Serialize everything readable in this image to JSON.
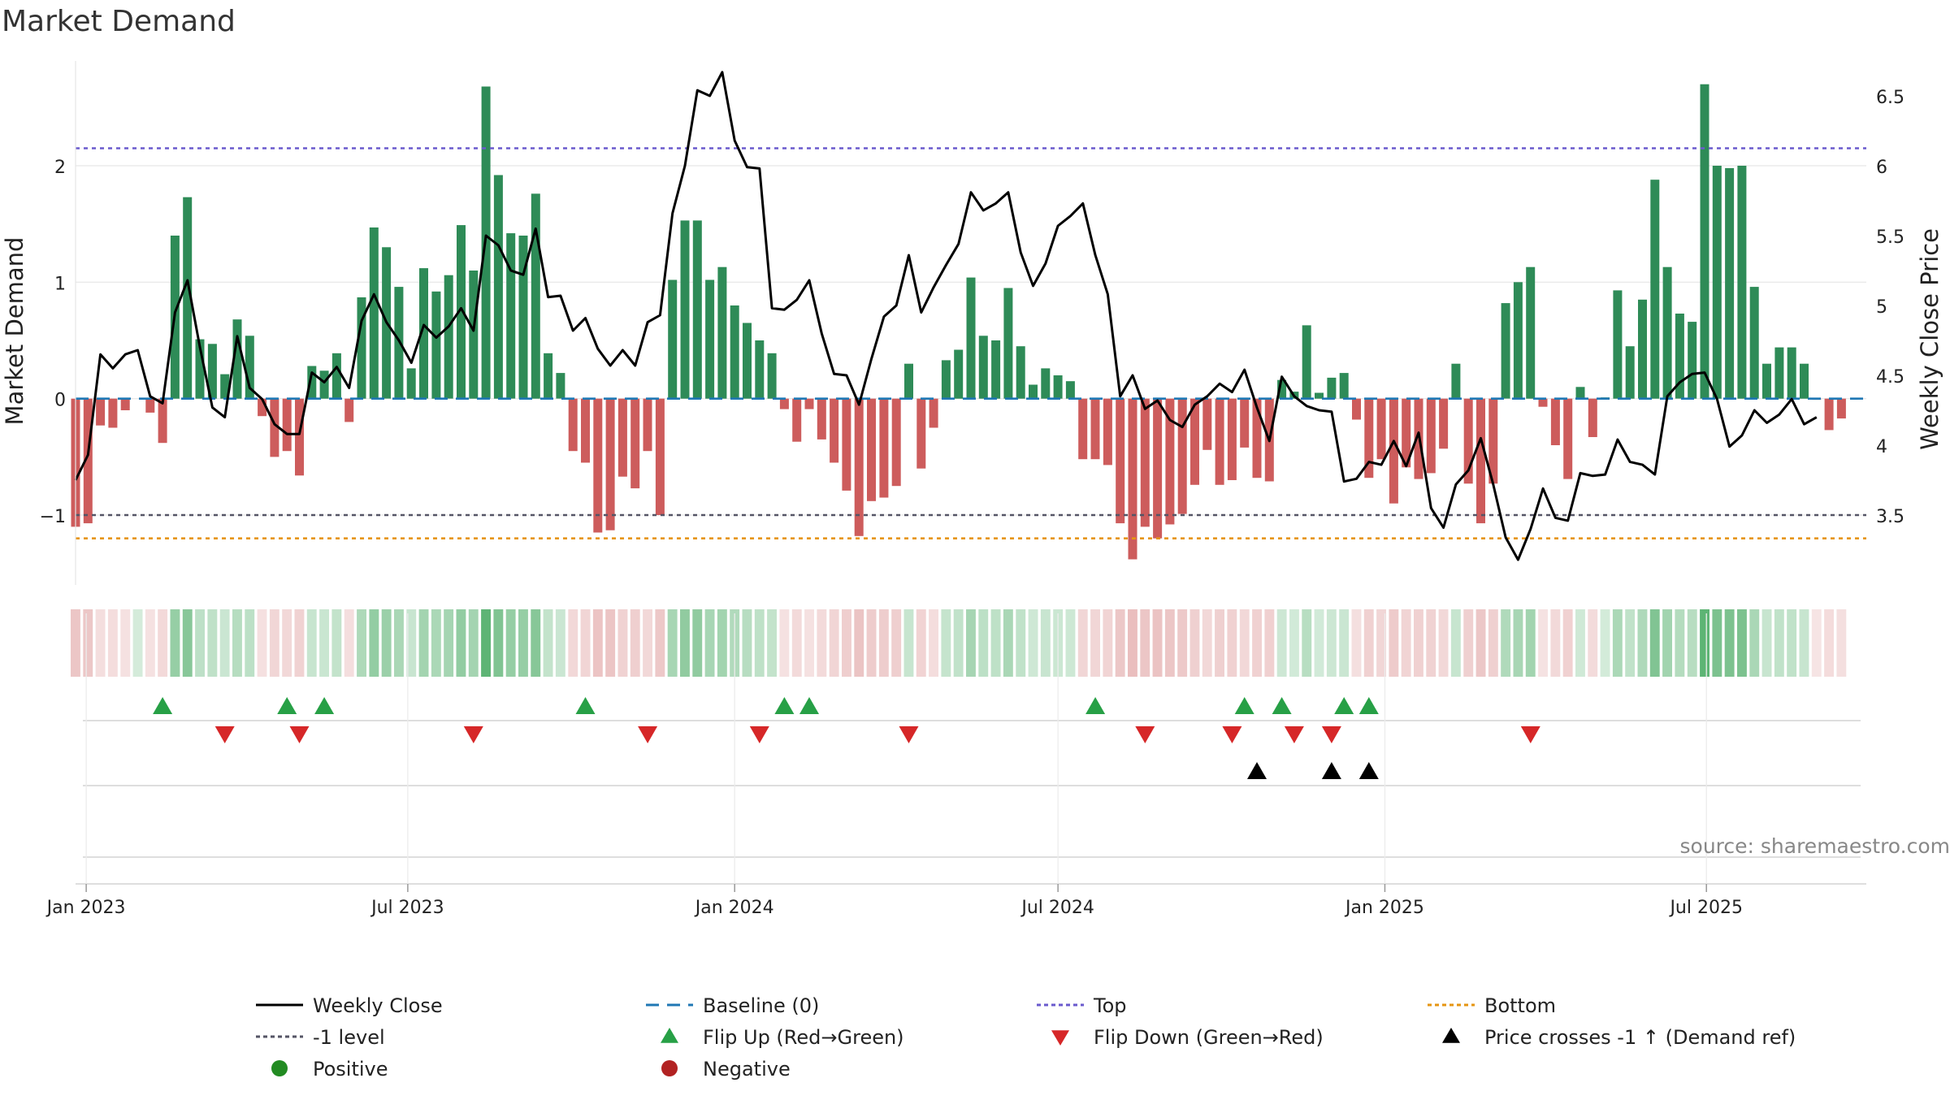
{
  "chart_data": {
    "type": "bar",
    "title": "Market Demand",
    "ylabel_left": "Market Demand",
    "ylabel_right": "Weekly Close Price",
    "source": "source: sharemaestro.com",
    "x_start": "2022-12-26",
    "x_end": "2025-09-29",
    "week0_date": "2022-12-26",
    "x_ticks": [
      {
        "label": "Jan 2023",
        "date": "2023-01-01"
      },
      {
        "label": "Jul 2023",
        "date": "2023-07-01"
      },
      {
        "label": "Jan 2024",
        "date": "2024-01-01"
      },
      {
        "label": "Jul 2024",
        "date": "2024-07-01"
      },
      {
        "label": "Jan 2025",
        "date": "2025-01-01"
      },
      {
        "label": "Jul 2025",
        "date": "2025-07-01"
      }
    ],
    "ylim_left": [
      -1.6,
      2.9
    ],
    "ylim_right": [
      3.0,
      6.75
    ],
    "y_ticks_left": [
      {
        "v": -1,
        "label": "−1"
      },
      {
        "v": 0,
        "label": "0"
      },
      {
        "v": 1,
        "label": "1"
      },
      {
        "v": 2,
        "label": "2"
      }
    ],
    "y_ticks_right": [
      {
        "v": 3.5,
        "label": "3.5"
      },
      {
        "v": 4,
        "label": "4"
      },
      {
        "v": 4.5,
        "label": "4.5"
      },
      {
        "v": 5,
        "label": "5"
      },
      {
        "v": 5.5,
        "label": "5.5"
      },
      {
        "v": 6,
        "label": "6"
      },
      {
        "v": 6.5,
        "label": "6.5"
      }
    ],
    "reference_lines": {
      "top": 2.15,
      "bottom": -1.2,
      "minus_one": -1.0,
      "baseline": 0
    },
    "colors": {
      "positive": "#2e8b57",
      "negative": "#cd5c5c",
      "price": "#000000",
      "top": "#6a5acd",
      "bottom": "#e69512",
      "minus_one": "#555566",
      "baseline": "#1f77b4",
      "flip_up": "#27a046",
      "flip_down": "#d62728",
      "cross": "#000000",
      "pos_dot": "#228b22",
      "neg_dot": "#b22222"
    },
    "demand": [
      -1.1,
      -1.07,
      -0.23,
      -0.25,
      -0.1,
      0,
      -0.12,
      -0.38,
      1.4,
      1.73,
      0.51,
      0.47,
      0.21,
      0.68,
      0.54,
      -0.15,
      -0.5,
      -0.45,
      -0.66,
      0.28,
      0.24,
      0.39,
      -0.2,
      0.87,
      1.47,
      1.3,
      0.96,
      0.26,
      1.12,
      0.92,
      1.06,
      1.49,
      1.1,
      2.68,
      1.92,
      1.42,
      1.4,
      1.76,
      0.39,
      0.22,
      -0.45,
      -0.55,
      -1.15,
      -1.13,
      -0.67,
      -0.77,
      -0.45,
      -1.0,
      1.02,
      1.53,
      1.53,
      1.02,
      1.13,
      0.8,
      0.65,
      0.5,
      0.39,
      -0.09,
      -0.37,
      -0.09,
      -0.35,
      -0.55,
      -0.79,
      -1.18,
      -0.88,
      -0.85,
      -0.75,
      0.3,
      -0.6,
      -0.25,
      0.33,
      0.42,
      1.04,
      0.54,
      0.5,
      0.95,
      0.45,
      0.12,
      0.26,
      0.2,
      0.15,
      -0.52,
      -0.52,
      -0.57,
      -1.07,
      -1.38,
      -1.1,
      -1.2,
      -1.08,
      -0.99,
      -0.74,
      -0.44,
      -0.74,
      -0.7,
      -0.42,
      -0.68,
      -0.71,
      0.16,
      0.06,
      0.63,
      0.05,
      0.18,
      0.22,
      -0.18,
      -0.68,
      -0.52,
      -0.9,
      -0.59,
      -0.69,
      -0.64,
      -0.43,
      0.3,
      -0.73,
      -1.07,
      -0.73,
      0.82,
      1.0,
      1.13,
      -0.07,
      -0.4,
      -0.69,
      0.1,
      -0.33,
      0.01,
      0.93,
      0.45,
      0.85,
      1.88,
      1.13,
      0.73,
      0.66,
      2.7,
      2.0,
      1.98,
      2.0,
      0.96,
      0.3,
      0.44,
      0.44,
      0.3,
      -0.01,
      -0.27,
      -0.17
    ],
    "price": [
      3.75,
      3.93,
      4.65,
      4.55,
      4.65,
      4.68,
      4.35,
      4.3,
      4.95,
      5.18,
      4.7,
      4.27,
      4.2,
      4.78,
      4.41,
      4.33,
      4.15,
      4.08,
      4.08,
      4.52,
      4.45,
      4.56,
      4.41,
      4.89,
      5.08,
      4.88,
      4.75,
      4.59,
      4.86,
      4.77,
      4.85,
      4.98,
      4.82,
      5.5,
      5.43,
      5.25,
      5.22,
      5.55,
      5.06,
      5.07,
      4.82,
      4.91,
      4.69,
      4.57,
      4.68,
      4.57,
      4.88,
      4.93,
      5.66,
      6.0,
      6.54,
      6.5,
      6.67,
      6.18,
      5.99,
      5.98,
      4.98,
      4.97,
      5.04,
      5.18,
      4.8,
      4.51,
      4.5,
      4.29,
      4.62,
      4.92,
      5.0,
      5.36,
      4.95,
      5.13,
      5.29,
      5.44,
      5.81,
      5.68,
      5.73,
      5.81,
      5.38,
      5.14,
      5.3,
      5.57,
      5.64,
      5.73,
      5.36,
      5.08,
      4.35,
      4.5,
      4.26,
      4.32,
      4.18,
      4.13,
      4.29,
      4.35,
      4.44,
      4.38,
      4.54,
      4.27,
      4.03,
      4.49,
      4.35,
      4.28,
      4.25,
      4.24,
      3.74,
      3.76,
      3.88,
      3.86,
      4.03,
      3.85,
      4.09,
      3.55,
      3.41,
      3.72,
      3.82,
      4.05,
      3.72,
      3.34,
      3.18,
      3.4,
      3.69,
      3.48,
      3.46,
      3.8,
      3.78,
      3.79,
      4.04,
      3.88,
      3.86,
      3.79,
      4.35,
      4.45,
      4.51,
      4.52,
      4.33,
      3.99,
      4.07,
      4.25,
      4.16,
      4.22,
      4.33,
      4.15,
      4.2
    ],
    "heat_strip": true,
    "flip_up_weeks": [
      7,
      17,
      20,
      41,
      57,
      59,
      82,
      94,
      97,
      102,
      104
    ],
    "flip_down_weeks": [
      12,
      18,
      32,
      46,
      55,
      67,
      86,
      93,
      98,
      101,
      117
    ],
    "cross_weeks": [
      95,
      101,
      104
    ],
    "legend": [
      {
        "label": "Weekly Close",
        "kind": "line",
        "color_key": "price"
      },
      {
        "label": "Baseline (0)",
        "kind": "dash",
        "color_key": "baseline"
      },
      {
        "label": "Top",
        "kind": "dot",
        "color_key": "top"
      },
      {
        "label": "Bottom",
        "kind": "dot",
        "color_key": "bottom"
      },
      {
        "label": "-1 level",
        "kind": "dot",
        "color_key": "minus_one"
      },
      {
        "label": "Flip Up (Red→Green)",
        "kind": "tri-up",
        "color_key": "flip_up"
      },
      {
        "label": "Flip Down (Green→Red)",
        "kind": "tri-down",
        "color_key": "flip_down"
      },
      {
        "label": "Price crosses -1 ↑ (Demand ref)",
        "kind": "tri-up",
        "color_key": "cross"
      },
      {
        "label": "Positive",
        "kind": "circle",
        "color_key": "pos_dot"
      },
      {
        "label": "Negative",
        "kind": "circle",
        "color_key": "neg_dot"
      }
    ]
  }
}
